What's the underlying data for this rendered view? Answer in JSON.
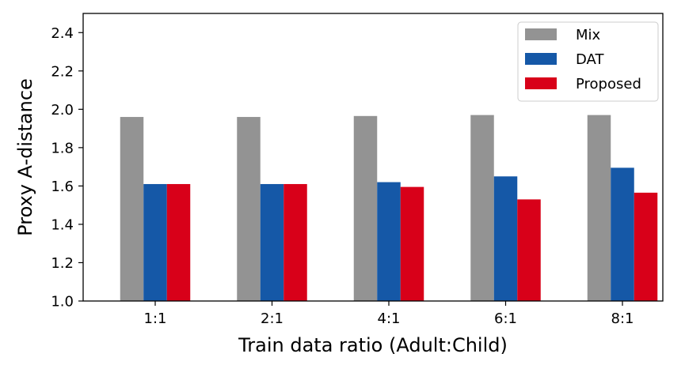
{
  "chart_data": {
    "type": "bar",
    "title": "",
    "xlabel": "Train data ratio (Adult:Child)",
    "ylabel": "Proxy A-distance",
    "categories": [
      "1:1",
      "2:1",
      "4:1",
      "6:1",
      "8:1"
    ],
    "ylim": [
      1.0,
      2.5
    ],
    "yticks": [
      "1.0",
      "1.2",
      "1.4",
      "1.6",
      "1.8",
      "2.0",
      "2.2",
      "2.4"
    ],
    "grid": false,
    "legend_position": "top-right",
    "series": [
      {
        "name": "Mix",
        "color": "#939393",
        "values": [
          1.96,
          1.96,
          1.965,
          1.97,
          1.97
        ]
      },
      {
        "name": "DAT",
        "color": "#1558a7",
        "values": [
          1.61,
          1.61,
          1.62,
          1.65,
          1.695
        ]
      },
      {
        "name": "Proposed",
        "color": "#d80019",
        "values": [
          1.61,
          1.61,
          1.595,
          1.53,
          1.565
        ]
      }
    ]
  }
}
